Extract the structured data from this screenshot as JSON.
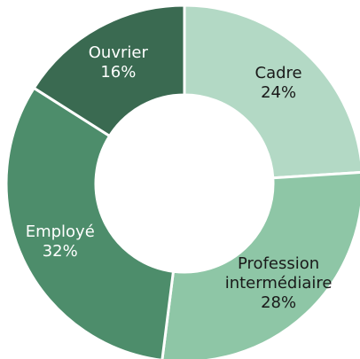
{
  "chart_data": {
    "type": "pie",
    "categories": [
      "Cadre",
      "Profession intermédiaire",
      "Employé",
      "Ouvrier"
    ],
    "values": [
      24,
      28,
      32,
      16
    ],
    "value_labels": [
      "24%",
      "28%",
      "32%",
      "16%"
    ],
    "colors": [
      "#b3d9c5",
      "#8ec6a6",
      "#4d8d6b",
      "#3a6a51"
    ],
    "label_colors": [
      "#1a1a1a",
      "#1a1a1a",
      "#ffffff",
      "#ffffff"
    ]
  }
}
